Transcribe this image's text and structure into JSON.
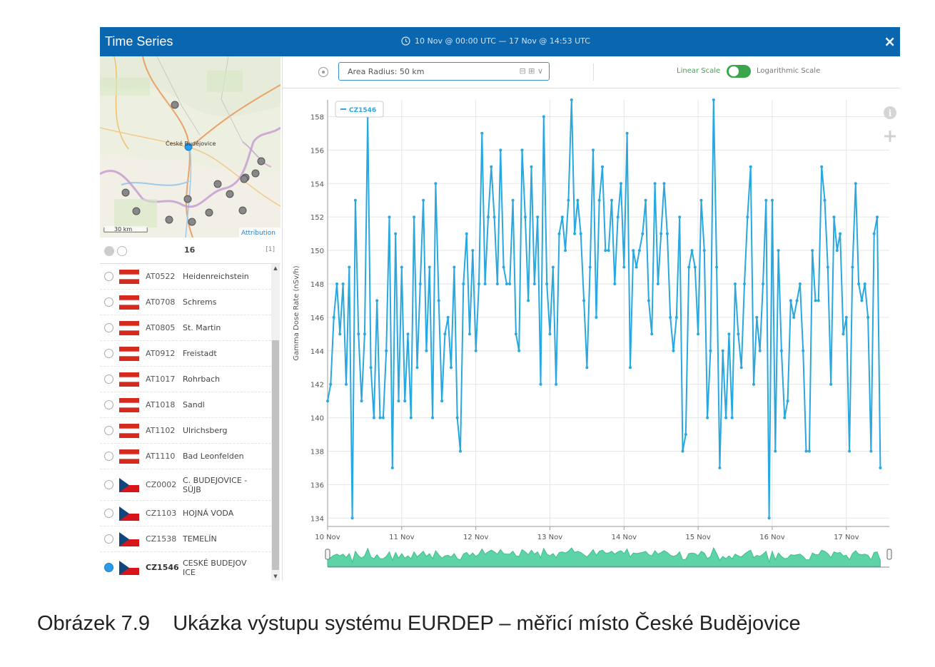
{
  "window": {
    "title": "Time Series",
    "time_range": "10 Nov @ 00:00 UTC  —  17 Nov @ 14:53 UTC",
    "close_label": "×"
  },
  "map": {
    "city_label": "České Budějovice",
    "scale_label": "30 km",
    "attribution": "Attribution"
  },
  "list": {
    "count": "16",
    "selected_count": "[1]",
    "stations": [
      {
        "code": "AT0522",
        "name": "Heidenreichstein",
        "country": "AT"
      },
      {
        "code": "AT0708",
        "name": "Schrems",
        "country": "AT"
      },
      {
        "code": "AT0805",
        "name": "St. Martin",
        "country": "AT"
      },
      {
        "code": "AT0912",
        "name": "Freistadt",
        "country": "AT"
      },
      {
        "code": "AT1017",
        "name": "Rohrbach",
        "country": "AT"
      },
      {
        "code": "AT1018",
        "name": "Sandl",
        "country": "AT"
      },
      {
        "code": "AT1102",
        "name": "Ulrichsberg",
        "country": "AT"
      },
      {
        "code": "AT1110",
        "name": "Bad Leonfelden",
        "country": "AT"
      },
      {
        "code": "CZ0002",
        "name": "C. BUDEJOVICE - SÚJB",
        "country": "CZ"
      },
      {
        "code": "CZ1103",
        "name": "HOJNÁ VODA",
        "country": "CZ"
      },
      {
        "code": "CZ1538",
        "name": "TEMELÍN",
        "country": "CZ"
      },
      {
        "code": "CZ1546",
        "name": "CESKÉ BUDEJOV ICE",
        "country": "CZ",
        "selected": true
      }
    ]
  },
  "toolbar": {
    "area_radius": "Area Radius: 50 km",
    "radius_controls": "⊟ ⊞  ∨",
    "linear_scale": "Linear Scale",
    "log_scale": "Logarithmic Scale",
    "scale_mode": "linear"
  },
  "colors": {
    "titlebar": "#0b66b0",
    "series": "#29a8e0",
    "navigator_fill": "#5fd3a8",
    "toggle_on": "#3aa64a"
  },
  "chart_data": {
    "type": "line",
    "title": "",
    "ylabel": "Gamma Dose Rate (nSv/h)",
    "xlabel": "",
    "x_ticks": [
      "10 Nov",
      "11 Nov",
      "12 Nov",
      "13 Nov",
      "14 Nov",
      "15 Nov",
      "16 Nov",
      "17 Nov"
    ],
    "ylim": [
      133.5,
      159
    ],
    "y_ticks": [
      134,
      136,
      138,
      140,
      142,
      144,
      146,
      148,
      150,
      152,
      154,
      156,
      158
    ],
    "x_range_days": [
      10.0,
      17.58
    ],
    "grid": true,
    "legend_position": "top-left",
    "series": [
      {
        "name": "CZ1546",
        "x_start": "10 Nov 00:00 UTC",
        "x_step_hours": 1,
        "values": [
          141,
          142,
          146,
          148,
          145,
          148,
          142,
          149,
          134,
          153,
          145,
          141,
          145,
          158,
          143,
          140,
          147,
          140,
          140,
          144,
          152,
          137,
          151,
          141,
          149,
          141,
          145,
          140,
          152,
          143,
          148,
          153,
          144,
          149,
          140,
          154,
          147,
          141,
          145,
          146,
          143,
          149,
          140,
          138,
          148,
          151,
          145,
          150,
          144,
          148,
          157,
          148,
          152,
          155,
          152,
          148,
          156,
          149,
          148,
          148,
          153,
          145,
          144,
          156,
          152,
          147,
          155,
          148,
          152,
          142,
          158,
          148,
          145,
          149,
          142,
          151,
          152,
          150,
          153,
          159,
          151,
          153,
          151,
          147,
          143,
          149,
          156,
          146,
          153,
          155,
          150,
          150,
          153,
          148,
          152,
          154,
          149,
          157,
          143,
          150,
          149,
          150,
          151,
          153,
          147,
          145,
          154,
          148,
          151,
          154,
          151,
          146,
          144,
          146,
          152,
          138,
          139,
          149,
          150,
          149,
          145,
          153,
          150,
          140,
          144,
          159,
          149,
          137,
          144,
          140,
          145,
          140,
          148,
          145,
          143,
          148,
          152,
          155,
          142,
          146,
          144,
          148,
          153,
          134,
          153,
          138,
          150,
          144,
          140,
          141,
          147,
          146,
          147,
          148,
          144,
          138,
          138,
          150,
          147,
          147,
          155,
          153,
          149,
          142,
          152,
          150,
          151,
          145,
          146,
          138,
          149,
          154,
          148,
          147,
          148,
          146,
          138,
          151,
          152,
          137
        ]
      }
    ]
  }
}
